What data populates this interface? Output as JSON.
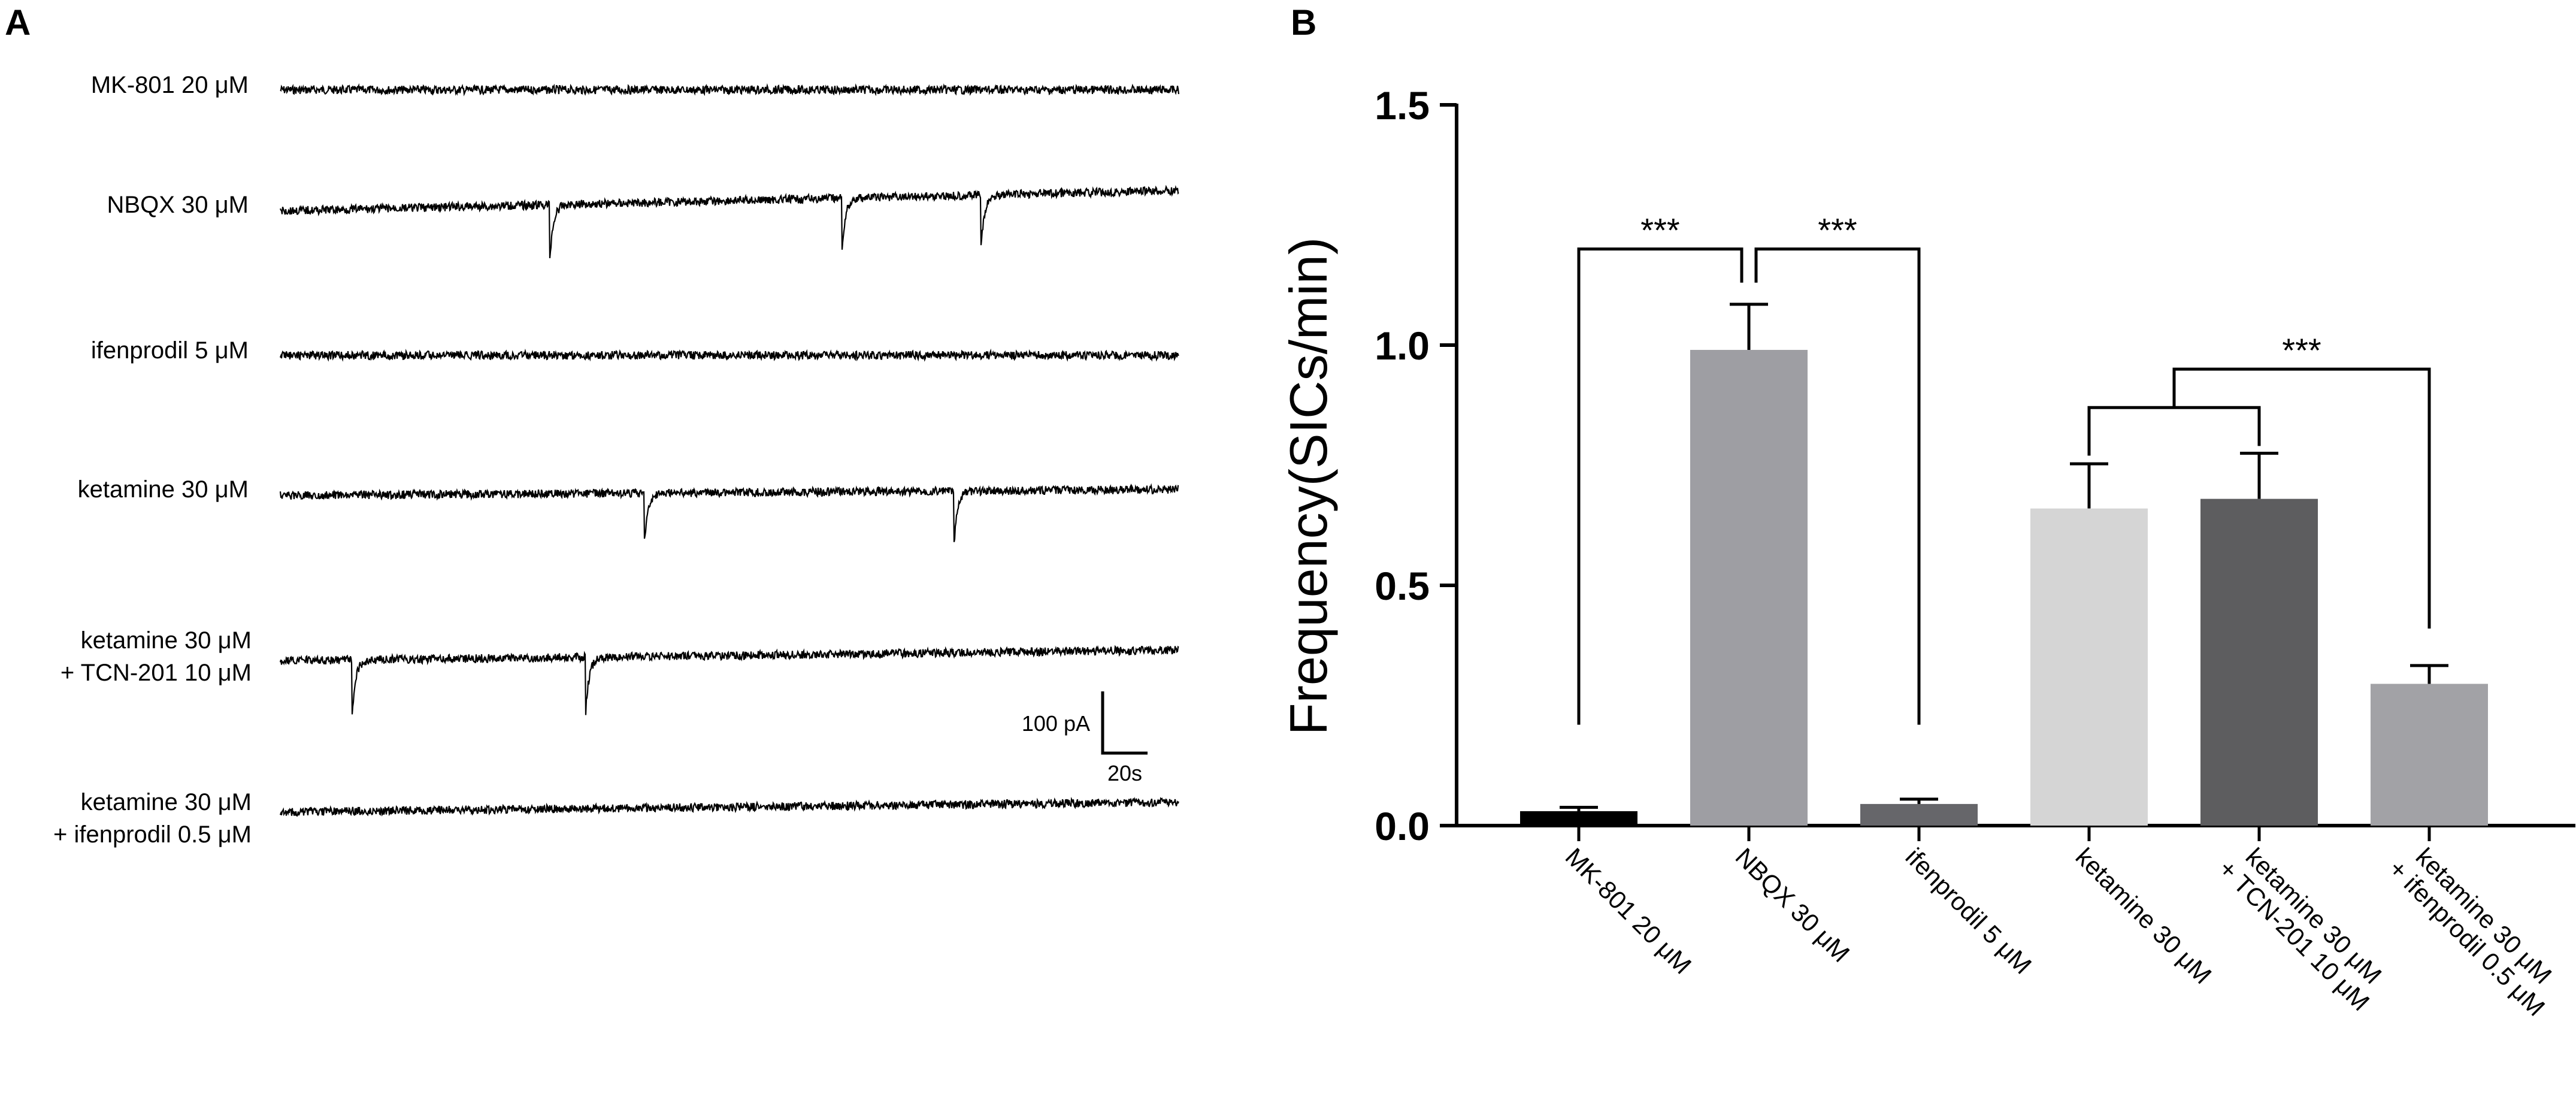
{
  "panel_a": {
    "label": "A",
    "traces": [
      {
        "label_lines": [
          "MK-801 20 μM"
        ],
        "events": []
      },
      {
        "label_lines": [
          "NBQX 30 μM"
        ],
        "events": [
          0.3,
          0.625,
          0.78
        ]
      },
      {
        "label_lines": [
          "ifenprodil 5 μM"
        ],
        "events": []
      },
      {
        "label_lines": [
          "ketamine 30 μM"
        ],
        "events": [
          0.405,
          0.75
        ]
      },
      {
        "label_lines": [
          "ketamine 30 μM",
          "+ TCN-201 10 μM"
        ],
        "events": [
          0.08,
          0.34
        ]
      },
      {
        "label_lines": [
          "ketamine 30 μM",
          "+ ifenprodil 0.5 μM"
        ],
        "events": []
      }
    ],
    "scale_bar": {
      "y_label": "100 pA",
      "x_label": "20s"
    },
    "trace_color": "#000000"
  },
  "panel_b": {
    "label": "B",
    "sig_labels": [
      "***",
      "***",
      "***"
    ]
  },
  "chart_data": {
    "type": "bar",
    "categories": [
      "MK-801 20 μM",
      "NBQX 30 μM",
      "ifenprodil 5 μM",
      "ketamine 30 μM",
      "ketamine 30 μM\n+ TCN-201 10 μM",
      "ketamine 30 μM\n+ ifenprodil 0.5 μM"
    ],
    "values": [
      0.03,
      0.99,
      0.045,
      0.66,
      0.68,
      0.295
    ],
    "errors": [
      0.008,
      0.095,
      0.01,
      0.093,
      0.095,
      0.038
    ],
    "colors": [
      "#000000",
      "#9e9ea3",
      "#66666a",
      "#d5d5d5",
      "#5d5d5f",
      "#a2a2a6"
    ],
    "ylabel": "Frequency(SICs/min)",
    "xlabel": "",
    "ylim": [
      0,
      1.5
    ],
    "yticks": [
      0.0,
      0.5,
      1.0,
      1.5
    ],
    "ytick_labels": [
      "0.0",
      "0.5",
      "1.0",
      "1.5"
    ],
    "significance": [
      {
        "from": 0,
        "to": 1,
        "label": "***",
        "y": 1.2
      },
      {
        "from": 1,
        "to": 2,
        "label": "***",
        "y": 1.2
      },
      {
        "from": [
          3,
          4
        ],
        "to": 5,
        "label": "***",
        "y": 0.95
      }
    ]
  }
}
